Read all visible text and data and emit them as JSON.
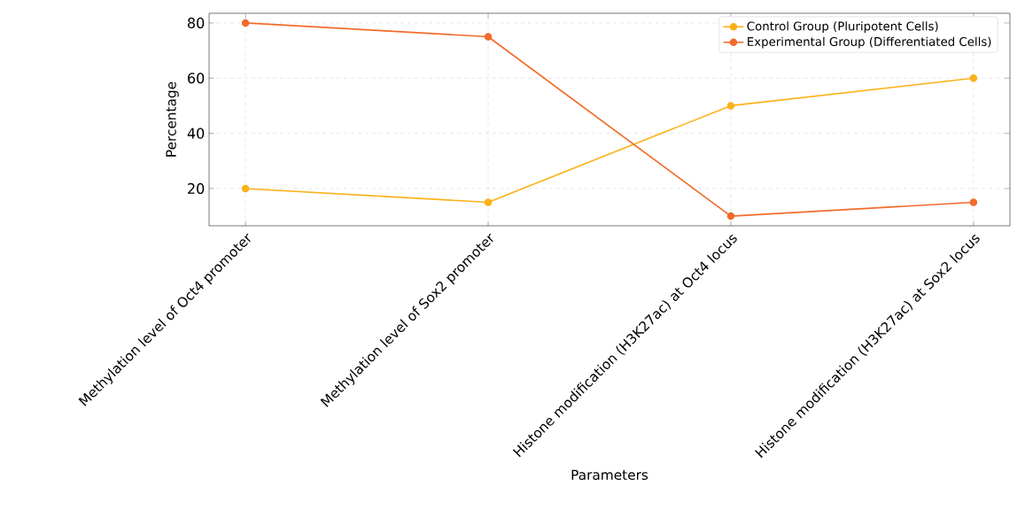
{
  "chart_data": {
    "type": "line",
    "xlabel": "Parameters",
    "ylabel": "Percentage",
    "categories": [
      "Methylation level of Oct4 promoter",
      "Methylation level of Sox2 promoter",
      "Histone modification (H3K27ac) at Oct4 locus",
      "Histone modification (H3K27ac) at Sox2 locus"
    ],
    "series": [
      {
        "name": "Control Group (Pluripotent Cells)",
        "color": "#fbb117",
        "values": [
          20,
          15,
          50,
          60
        ]
      },
      {
        "name": "Experimental Group (Differentiated Cells)",
        "color": "#f26b2a",
        "values": [
          80,
          75,
          10,
          15
        ]
      }
    ],
    "ylim": [
      6.5,
      83.5
    ],
    "yticks": [
      20,
      40,
      60,
      80
    ],
    "grid": true,
    "legend": "top right",
    "marker": "circle",
    "line_style": "solid"
  }
}
